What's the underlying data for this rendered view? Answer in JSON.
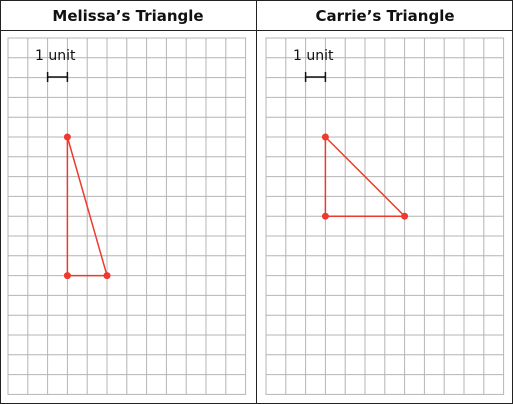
{
  "panels": [
    {
      "title": "Melissa’s Triangle",
      "unit_label": "1 unit",
      "vertices": [
        {
          "gx": 3,
          "gy": 5
        },
        {
          "gx": 3,
          "gy": 12
        },
        {
          "gx": 5,
          "gy": 12
        }
      ]
    },
    {
      "title": "Carrie’s Triangle",
      "unit_label": "1 unit",
      "vertices": [
        {
          "gx": 3,
          "gy": 5
        },
        {
          "gx": 3,
          "gy": 9
        },
        {
          "gx": 7,
          "gy": 9
        }
      ]
    }
  ],
  "colors": {
    "triangle": "#ee3a2e",
    "grid": "#b4b4b4",
    "frame": "#222222"
  }
}
